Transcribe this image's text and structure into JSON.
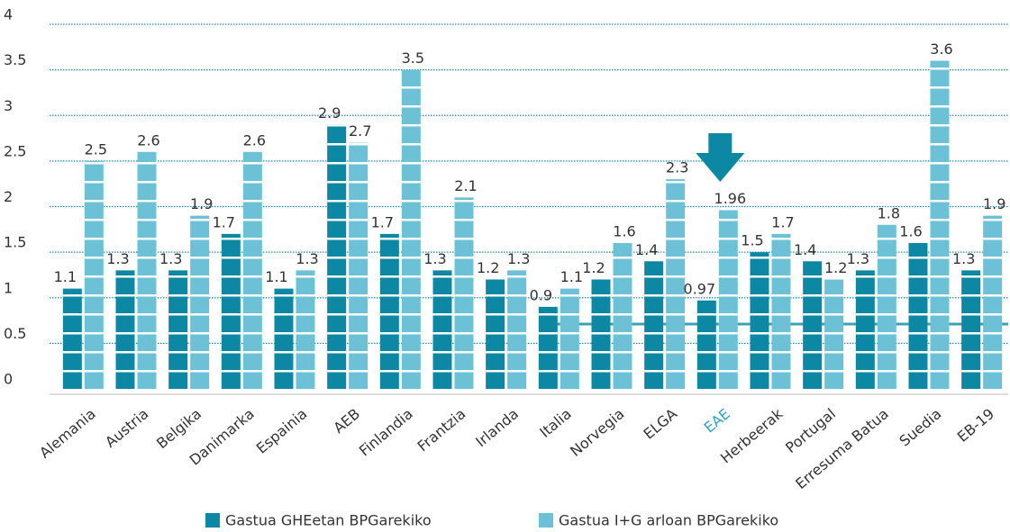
{
  "chart_data": {
    "type": "bar",
    "categories": [
      "Alemania",
      "Austria",
      "Belgika",
      "Danimarka",
      "Espainia",
      "AEB",
      "Finlandia",
      "Frantzia",
      "Irlanda",
      "Italia",
      "Norvegia",
      "ELGA",
      "EAE",
      "Herbeerak",
      "Portugal",
      "Erresuma Batua",
      "Suedia",
      "EB-19"
    ],
    "series": [
      {
        "name": "Gastua GHEetan BPGarekiko",
        "color": "#0d88a4",
        "values": [
          1.1,
          1.3,
          1.3,
          1.7,
          1.1,
          2.9,
          1.7,
          1.3,
          1.2,
          0.9,
          1.2,
          1.4,
          0.97,
          1.5,
          1.4,
          1.3,
          1.6,
          1.3
        ]
      },
      {
        "name": "Gastua I+G arloan BPGarekiko",
        "color": "#6cc1d6",
        "values": [
          2.5,
          2.6,
          1.9,
          2.6,
          1.3,
          2.7,
          3.5,
          2.1,
          1.3,
          1.1,
          1.6,
          2.3,
          1.96,
          1.7,
          1.2,
          1.8,
          3.6,
          1.9
        ]
      }
    ],
    "ylim": [
      0,
      4
    ],
    "yticks": [
      0,
      0.5,
      1,
      1.5,
      2,
      2.5,
      3,
      3.5,
      4
    ],
    "grid": true,
    "highlight_index": 12,
    "highlight_color": "#2aa3c4"
  }
}
